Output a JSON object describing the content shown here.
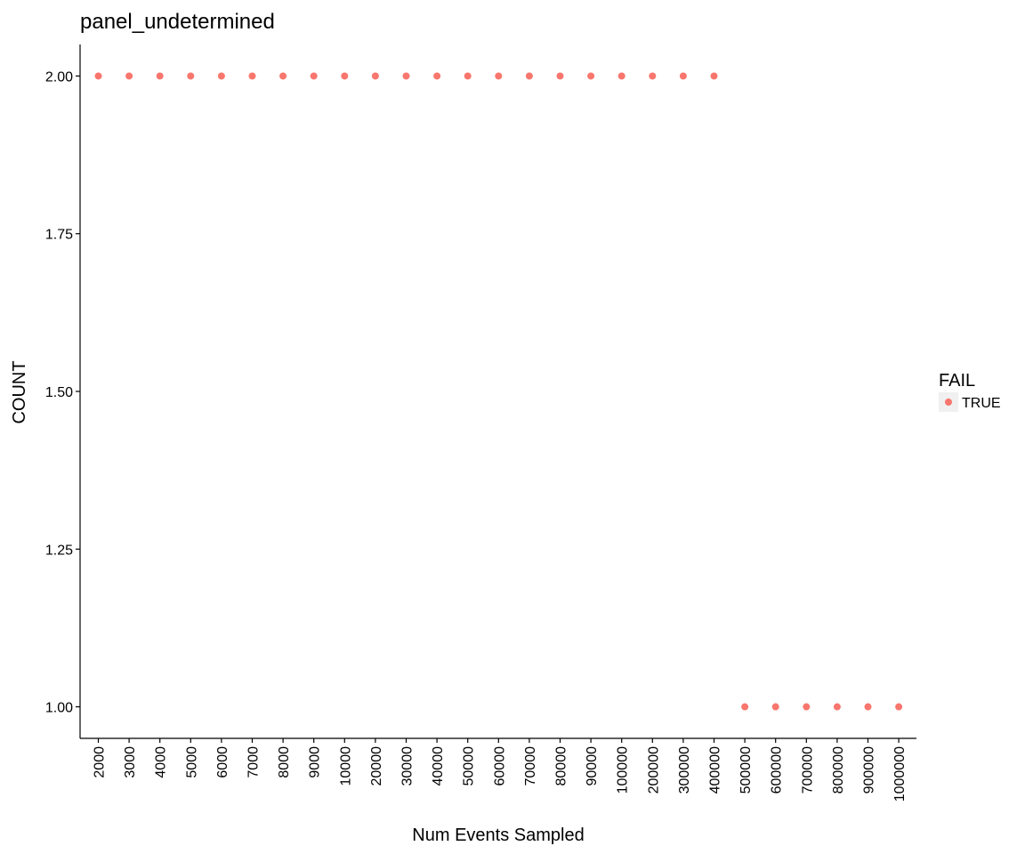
{
  "chart_data": {
    "type": "scatter",
    "title": "panel_undetermined",
    "xlabel": "Num Events Sampled",
    "ylabel": "COUNT",
    "x_scale": "categorical",
    "categories": [
      "2000",
      "3000",
      "4000",
      "5000",
      "6000",
      "7000",
      "8000",
      "9000",
      "10000",
      "20000",
      "30000",
      "40000",
      "50000",
      "60000",
      "70000",
      "80000",
      "90000",
      "100000",
      "200000",
      "300000",
      "400000",
      "500000",
      "600000",
      "700000",
      "800000",
      "900000",
      "1000000"
    ],
    "yticks": [
      "1.00",
      "1.25",
      "1.50",
      "1.75",
      "2.00"
    ],
    "ylim": [
      0.95,
      2.05
    ],
    "grid": false,
    "legend": {
      "title": "FAIL",
      "placement": "right",
      "entries": [
        {
          "label": "TRUE",
          "color": "#F8766D"
        }
      ]
    },
    "series": [
      {
        "name": "TRUE",
        "color": "#F8766D",
        "x": [
          "2000",
          "3000",
          "4000",
          "5000",
          "6000",
          "7000",
          "8000",
          "9000",
          "10000",
          "20000",
          "30000",
          "40000",
          "50000",
          "60000",
          "70000",
          "80000",
          "90000",
          "100000",
          "200000",
          "300000",
          "400000",
          "500000",
          "600000",
          "700000",
          "800000",
          "900000",
          "1000000"
        ],
        "y": [
          2,
          2,
          2,
          2,
          2,
          2,
          2,
          2,
          2,
          2,
          2,
          2,
          2,
          2,
          2,
          2,
          2,
          2,
          2,
          2,
          2,
          1,
          1,
          1,
          1,
          1,
          1
        ]
      }
    ]
  }
}
